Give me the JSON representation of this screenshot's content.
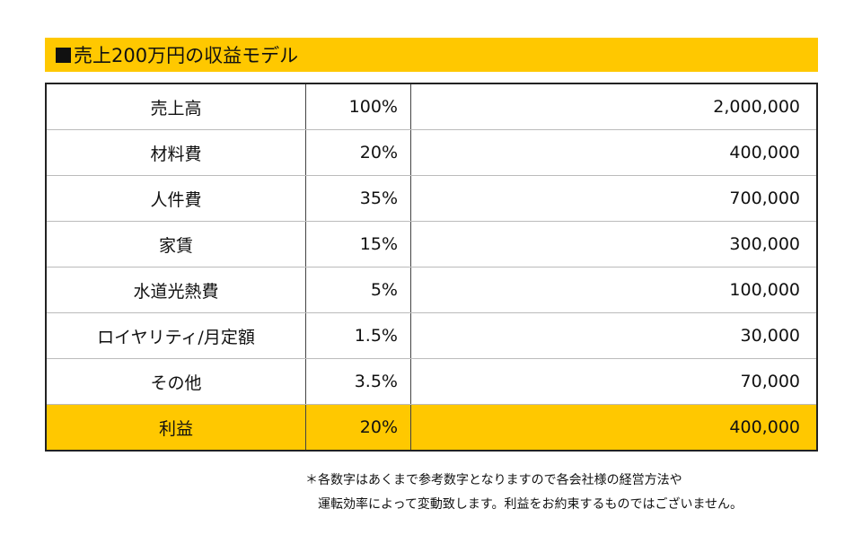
{
  "header": {
    "title": "売上200万円の収益モデル"
  },
  "table": {
    "rows": [
      {
        "item": "売上高",
        "percent": "100%",
        "amount": "2,000,000"
      },
      {
        "item": "材料費",
        "percent": "20%",
        "amount": "400,000"
      },
      {
        "item": "人件費",
        "percent": "35%",
        "amount": "700,000"
      },
      {
        "item": "家賃",
        "percent": "15%",
        "amount": "300,000"
      },
      {
        "item": "水道光熱費",
        "percent": "5%",
        "amount": "100,000"
      },
      {
        "item": "ロイヤリティ/月定額",
        "percent": "1.5%",
        "amount": "30,000"
      },
      {
        "item": "その他",
        "percent": "3.5%",
        "amount": "70,000"
      },
      {
        "item": "利益",
        "percent": "20%",
        "amount": "400,000"
      }
    ]
  },
  "footnote": {
    "line1": "＊各数字はあくまで参考数字となりますので各会社様の経営方法や",
    "line2": "運転効率によって変動致します。利益をお約束するものではございません。"
  },
  "colors": {
    "accent": "#ffc800",
    "border": "#222222"
  }
}
